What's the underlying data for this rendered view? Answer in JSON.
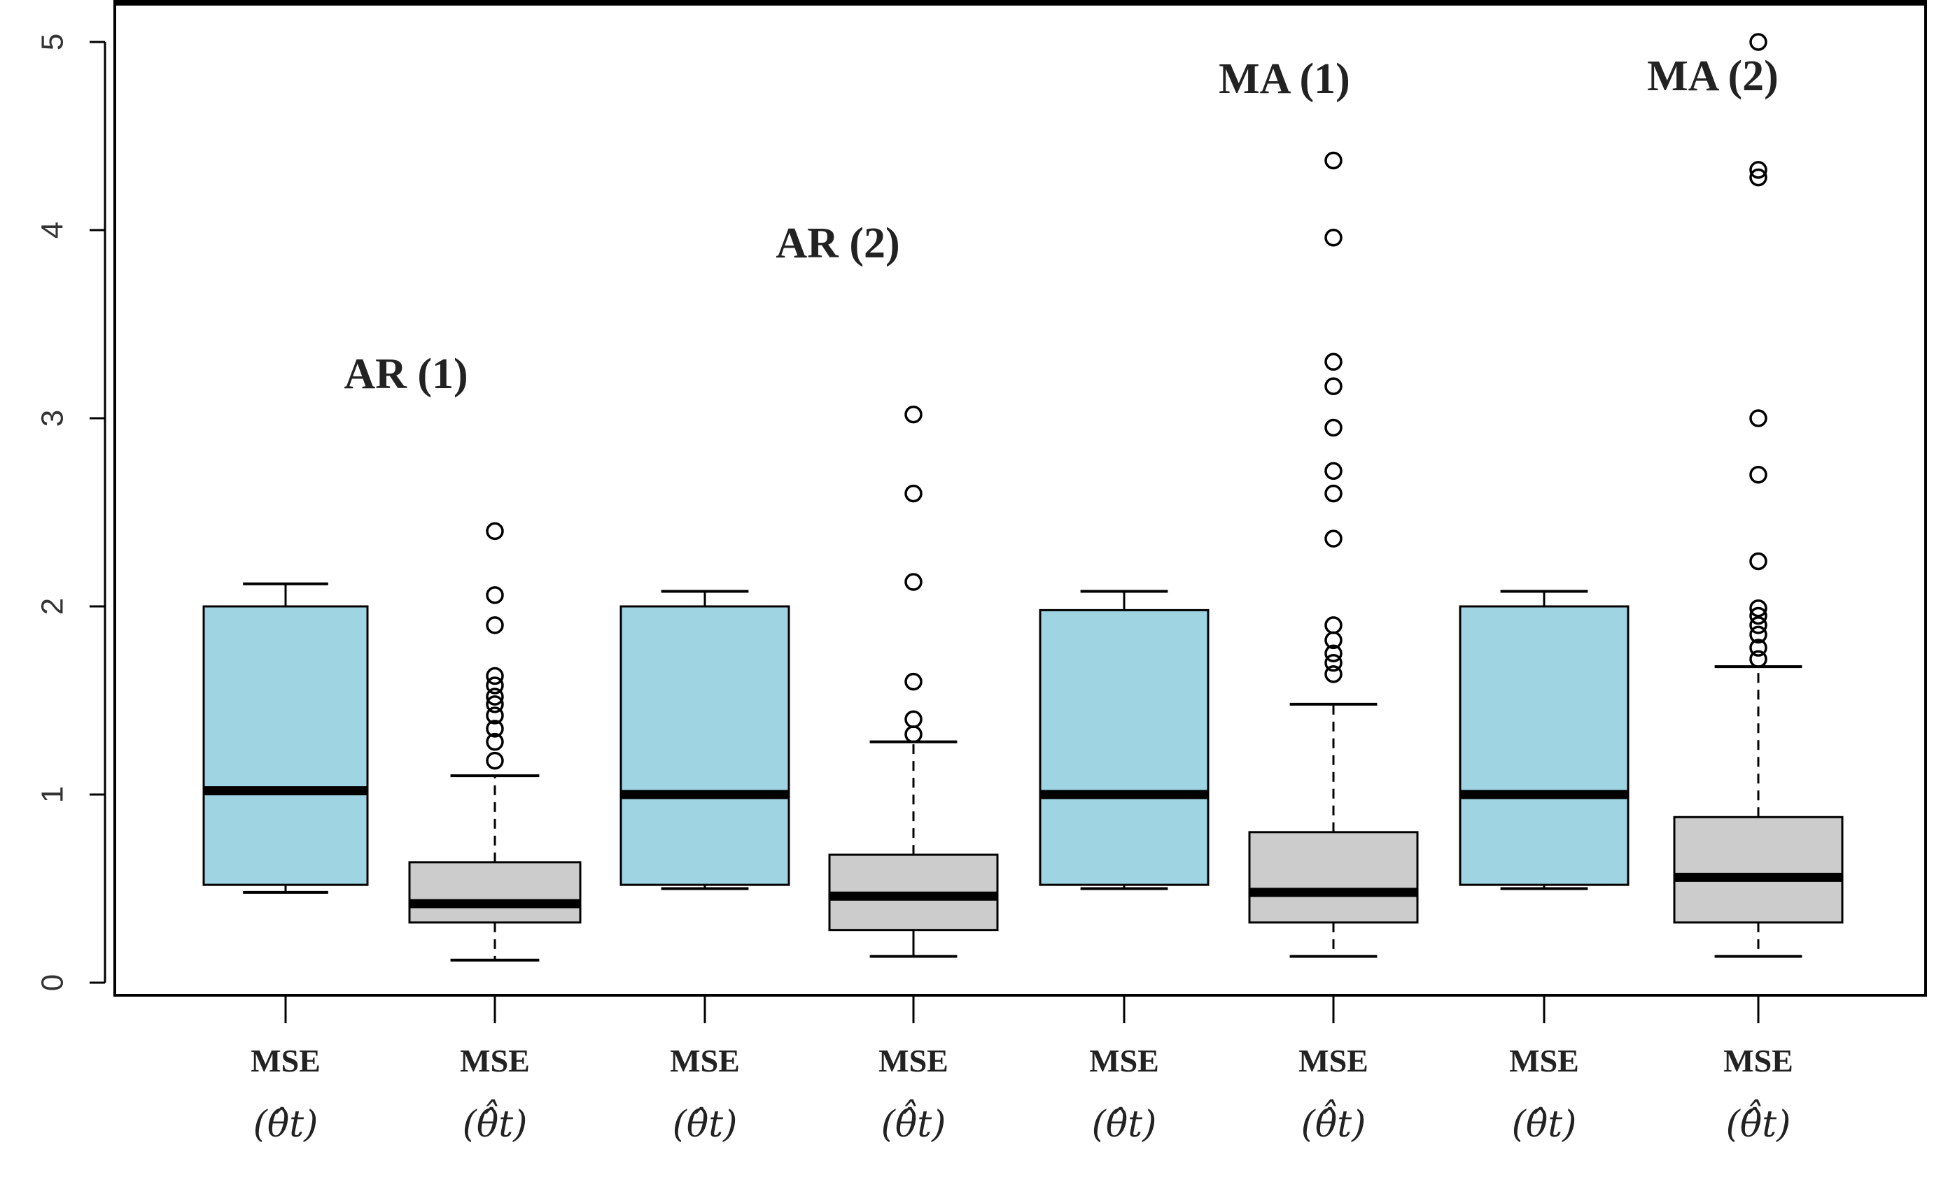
{
  "chart_data": {
    "type": "box",
    "ylim": [
      0,
      5.2
    ],
    "yticks": [
      "0",
      "1",
      "2",
      "3",
      "4",
      "5"
    ],
    "groups": [
      {
        "label": "AR (1)"
      },
      {
        "label": "AR (2)"
      },
      {
        "label": "MA (1)"
      },
      {
        "label": "MA (2)"
      }
    ],
    "boxes": [
      {
        "label": "MSE",
        "estimator": "(θ̂t)",
        "group": "AR (1)",
        "color": "#9fd4e2",
        "min": 0.48,
        "q1": 0.52,
        "median": 1.02,
        "q3": 2.0,
        "max": 2.12,
        "outliers": []
      },
      {
        "label": "MSE",
        "estimator": "(θ̂̂t)",
        "group": "AR (1)",
        "color": "#cccccc",
        "min": 0.12,
        "q1": 0.32,
        "median": 0.42,
        "q3": 0.64,
        "max": 1.1,
        "outliers": [
          1.18,
          1.28,
          1.35,
          1.42,
          1.48,
          1.52,
          1.58,
          1.63,
          1.9,
          2.06,
          2.4
        ]
      },
      {
        "label": "MSE",
        "estimator": "(θ̂t)",
        "group": "AR (2)",
        "color": "#9fd4e2",
        "min": 0.5,
        "q1": 0.52,
        "median": 1.0,
        "q3": 2.0,
        "max": 2.08,
        "outliers": []
      },
      {
        "label": "MSE",
        "estimator": "(θ̂̂t)",
        "group": "AR (2)",
        "color": "#cccccc",
        "min": 0.14,
        "q1": 0.28,
        "median": 0.46,
        "q3": 0.68,
        "max": 1.28,
        "outliers": [
          1.32,
          1.4,
          1.6,
          2.13,
          2.6,
          3.02
        ]
      },
      {
        "label": "MSE",
        "estimator": "(θ̂t)",
        "group": "MA (1)",
        "color": "#9fd4e2",
        "min": 0.5,
        "q1": 0.52,
        "median": 1.0,
        "q3": 1.98,
        "max": 2.08,
        "outliers": []
      },
      {
        "label": "MSE",
        "estimator": "(θ̂̂t)",
        "group": "MA (1)",
        "color": "#cccccc",
        "min": 0.14,
        "q1": 0.32,
        "median": 0.48,
        "q3": 0.8,
        "max": 1.48,
        "outliers": [
          1.64,
          1.7,
          1.75,
          1.82,
          1.9,
          2.36,
          2.6,
          2.72,
          2.95,
          3.17,
          3.3,
          3.96,
          4.37
        ]
      },
      {
        "label": "MSE",
        "estimator": "(θ̂t)",
        "group": "MA (2)",
        "color": "#9fd4e2",
        "min": 0.5,
        "q1": 0.52,
        "median": 1.0,
        "q3": 2.0,
        "max": 2.08,
        "outliers": []
      },
      {
        "label": "MSE",
        "estimator": "(θ̂̂t)",
        "group": "MA (2)",
        "color": "#cccccc",
        "min": 0.14,
        "q1": 0.32,
        "median": 0.56,
        "q3": 0.88,
        "max": 1.68,
        "outliers": [
          1.72,
          1.78,
          1.85,
          1.9,
          1.95,
          1.99,
          2.24,
          2.7,
          3.0,
          4.28,
          4.32,
          5.0
        ]
      }
    ]
  }
}
